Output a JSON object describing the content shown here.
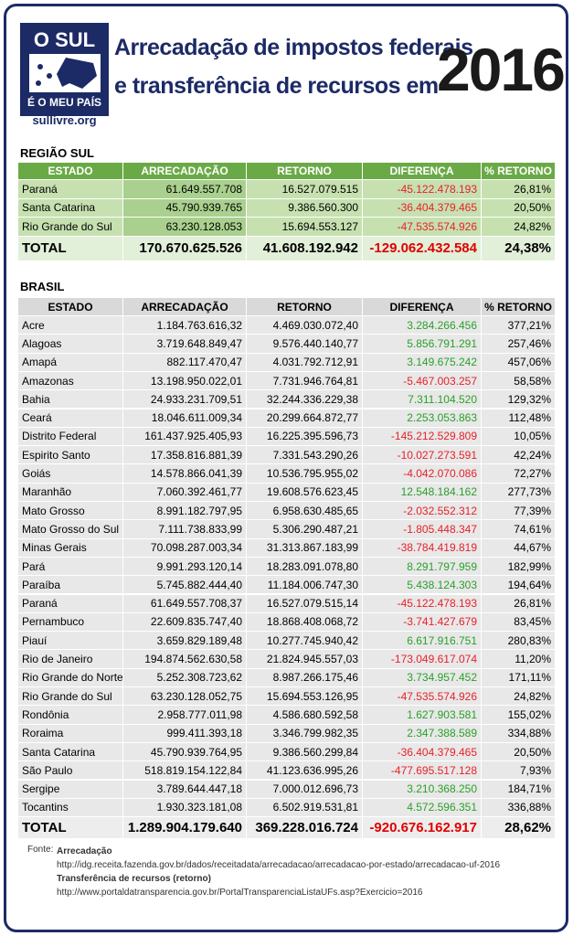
{
  "header": {
    "logo_top": "O SUL",
    "logo_bottom": "É O MEU PAÍS",
    "site": "sullivre.org",
    "title_line1": "Arrecadação de impostos federais",
    "title_line2": "e transferência de recursos em",
    "year": "2016"
  },
  "regiao_sul": {
    "title": "REGIÃO SUL",
    "columns": [
      "ESTADO",
      "ARRECADAÇÃO",
      "RETORNO",
      "DIFERENÇA",
      "% RETORNO"
    ],
    "rows": [
      [
        "Paraná",
        "61.649.557.708",
        "16.527.079.515",
        "-45.122.478.193",
        "26,81%"
      ],
      [
        "Santa Catarina",
        "45.790.939.765",
        "9.386.560.300",
        "-36.404.379.465",
        "20,50%"
      ],
      [
        "Rio Grande do Sul",
        "63.230.128.053",
        "15.694.553.127",
        "-47.535.574.926",
        "24,82%"
      ]
    ],
    "total": [
      "TOTAL",
      "170.670.625.526",
      "41.608.192.942",
      "-129.062.432.584",
      "24,38%"
    ]
  },
  "brasil": {
    "title": "BRASIL",
    "columns": [
      "ESTADO",
      "ARRECADAÇÃO",
      "RETORNO",
      "DIFERENÇA",
      "% RETORNO"
    ],
    "rows": [
      [
        "Acre",
        "1.184.763.616,32",
        "4.469.030.072,40",
        "3.284.266.456",
        "377,21%"
      ],
      [
        "Alagoas",
        "3.719.648.849,47",
        "9.576.440.140,77",
        "5.856.791.291",
        "257,46%"
      ],
      [
        "Amapá",
        "882.117.470,47",
        "4.031.792.712,91",
        "3.149.675.242",
        "457,06%"
      ],
      [
        "Amazonas",
        "13.198.950.022,01",
        "7.731.946.764,81",
        "-5.467.003.257",
        "58,58%"
      ],
      [
        "Bahia",
        "24.933.231.709,51",
        "32.244.336.229,38",
        "7.311.104.520",
        "129,32%"
      ],
      [
        "Ceará",
        "18.046.611.009,34",
        "20.299.664.872,77",
        "2.253.053.863",
        "112,48%"
      ],
      [
        "Distrito Federal",
        "161.437.925.405,93",
        "16.225.395.596,73",
        "-145.212.529.809",
        "10,05%"
      ],
      [
        "Espirito Santo",
        "17.358.816.881,39",
        "7.331.543.290,26",
        "-10.027.273.591",
        "42,24%"
      ],
      [
        "Goiás",
        "14.578.866.041,39",
        "10.536.795.955,02",
        "-4.042.070.086",
        "72,27%"
      ],
      [
        "Maranhão",
        "7.060.392.461,77",
        "19.608.576.623,45",
        "12.548.184.162",
        "277,73%"
      ],
      [
        "Mato Grosso",
        "8.991.182.797,95",
        "6.958.630.485,65",
        "-2.032.552.312",
        "77,39%"
      ],
      [
        "Mato Grosso do Sul",
        "7.111.738.833,99",
        "5.306.290.487,21",
        "-1.805.448.347",
        "74,61%"
      ],
      [
        "Minas Gerais",
        "70.098.287.003,34",
        "31.313.867.183,99",
        "-38.784.419.819",
        "44,67%"
      ],
      [
        "Pará",
        "9.991.293.120,14",
        "18.283.091.078,80",
        "8.291.797.959",
        "182,99%"
      ],
      [
        "Paraíba",
        "5.745.882.444,40",
        "11.184.006.747,30",
        "5.438.124.303",
        "194,64%"
      ],
      [
        "Paraná",
        "61.649.557.708,37",
        "16.527.079.515,14",
        "-45.122.478.193",
        "26,81%"
      ],
      [
        "Pernambuco",
        "22.609.835.747,40",
        "18.868.408.068,72",
        "-3.741.427.679",
        "83,45%"
      ],
      [
        "Piauí",
        "3.659.829.189,48",
        "10.277.745.940,42",
        "6.617.916.751",
        "280,83%"
      ],
      [
        "Rio de Janeiro",
        "194.874.562.630,58",
        "21.824.945.557,03",
        "-173.049.617.074",
        "11,20%"
      ],
      [
        "Rio Grande do Norte",
        "5.252.308.723,62",
        "8.987.266.175,46",
        "3.734.957.452",
        "171,11%"
      ],
      [
        "Rio Grande do Sul",
        "63.230.128.052,75",
        "15.694.553.126,95",
        "-47.535.574.926",
        "24,82%"
      ],
      [
        "Rondônia",
        "2.958.777.011,98",
        "4.586.680.592,58",
        "1.627.903.581",
        "155,02%"
      ],
      [
        "Roraima",
        "999.411.393,18",
        "3.346.799.982,35",
        "2.347.388.589",
        "334,88%"
      ],
      [
        "Santa Catarina",
        "45.790.939.764,95",
        "9.386.560.299,84",
        "-36.404.379.465",
        "20,50%"
      ],
      [
        "São Paulo",
        "518.819.154.122,84",
        "41.123.636.995,26",
        "-477.695.517.128",
        "7,93%"
      ],
      [
        "Sergipe",
        "3.789.644.447,18",
        "7.000.012.696,73",
        "3.210.368.250",
        "184,71%"
      ],
      [
        "Tocantins",
        "1.930.323.181,08",
        "6.502.919.531,81",
        "4.572.596.351",
        "336,88%"
      ]
    ],
    "total": [
      "TOTAL",
      "1.289.904.179.640",
      "369.228.016.724",
      "-920.676.162.917",
      "28,62%"
    ]
  },
  "source": {
    "label": "Fonte:",
    "items": [
      {
        "title": "Arrecadação",
        "url": "http://idg.receita.fazenda.gov.br/dados/receitadata/arrecadacao/arrecadacao-por-estado/arrecadacao-uf-2016"
      },
      {
        "title": "Transferência de recursos (retorno)",
        "url": "http://www.portaldatransparencia.gov.br/PortalTransparenciaListaUFs.asp?Exercicio=2016"
      }
    ]
  }
}
